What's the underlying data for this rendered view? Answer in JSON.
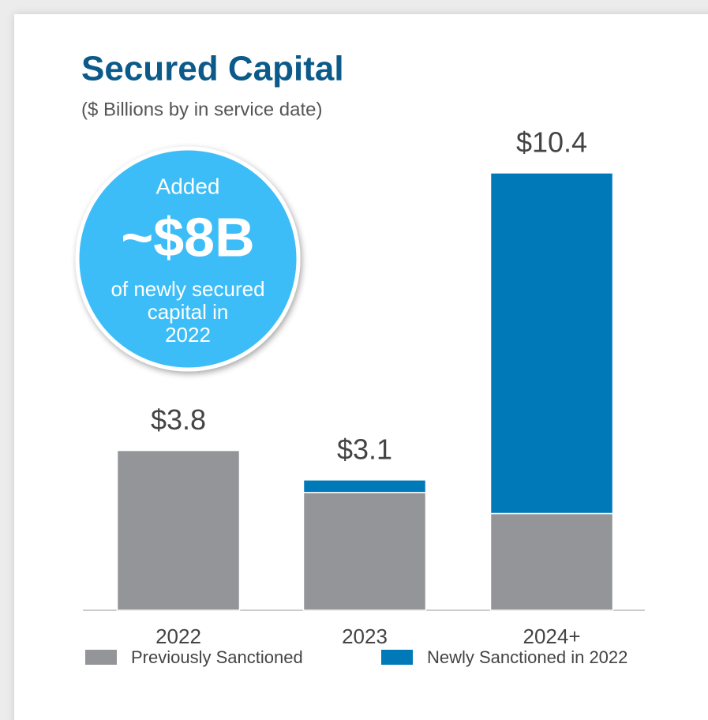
{
  "chart_data": {
    "type": "stacked-bar",
    "title": "Secured Capital",
    "subtitle": "($ Billions by in service date)",
    "categories": [
      "2022",
      "2023",
      "2024+"
    ],
    "series": [
      {
        "name": "Previously Sanctioned",
        "color": "#939598",
        "values": [
          3.8,
          2.8,
          2.3
        ]
      },
      {
        "name": "Newly Sanctioned in 2022",
        "color": "#0079b8",
        "values": [
          0,
          0.3,
          8.1
        ]
      }
    ],
    "totals": [
      3.8,
      3.1,
      10.4
    ],
    "total_labels": [
      "$3.8",
      "$3.1",
      "$10.4"
    ],
    "annotation": {
      "title": "Added",
      "value_text": "~$8B",
      "lines": [
        "of newly secured",
        "capital in",
        "2022"
      ],
      "color": "#3dbdf7"
    }
  }
}
